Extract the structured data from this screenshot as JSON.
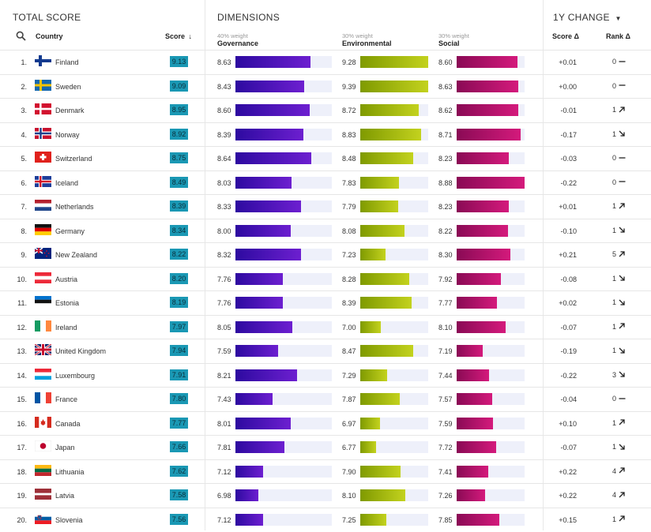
{
  "header": {
    "total_score": "TOTAL SCORE",
    "dimensions": "DIMENSIONS",
    "change": "1Y CHANGE",
    "col_country": "Country",
    "col_score": "Score",
    "col_score_delta": "Score Δ",
    "col_rank_delta": "Rank Δ"
  },
  "dimensions": [
    {
      "weight": "40% weight",
      "name": "Governance",
      "color_dark": "#2d0aa0",
      "color_light": "#6d1fd0"
    },
    {
      "weight": "30% weight",
      "name": "Environmental",
      "color_dark": "#7f9a00",
      "color_light": "#c3d21e"
    },
    {
      "weight": "30% weight",
      "name": "Social",
      "color_dark": "#8a0a55",
      "color_light": "#d41a7c"
    }
  ],
  "accent": "#1a98b4",
  "rows": [
    {
      "rank": "1.",
      "country": "Finland",
      "flag": "fi",
      "score": "9.13",
      "gov": "8.63",
      "env": "9.28",
      "soc": "8.60",
      "sd": "+0.01",
      "rd": "0",
      "dir": "flat"
    },
    {
      "rank": "2.",
      "country": "Sweden",
      "flag": "se",
      "score": "9.09",
      "gov": "8.43",
      "env": "9.39",
      "soc": "8.63",
      "sd": "+0.00",
      "rd": "0",
      "dir": "flat"
    },
    {
      "rank": "3.",
      "country": "Denmark",
      "flag": "dk",
      "score": "8.95",
      "gov": "8.60",
      "env": "8.72",
      "soc": "8.62",
      "sd": "-0.01",
      "rd": "1",
      "dir": "up"
    },
    {
      "rank": "4.",
      "country": "Norway",
      "flag": "no",
      "score": "8.92",
      "gov": "8.39",
      "env": "8.83",
      "soc": "8.71",
      "sd": "-0.17",
      "rd": "1",
      "dir": "down"
    },
    {
      "rank": "5.",
      "country": "Switzerland",
      "flag": "ch",
      "score": "8.75",
      "gov": "8.64",
      "env": "8.48",
      "soc": "8.23",
      "sd": "-0.03",
      "rd": "0",
      "dir": "flat"
    },
    {
      "rank": "6.",
      "country": "Iceland",
      "flag": "is",
      "score": "8.49",
      "gov": "8.03",
      "env": "7.83",
      "soc": "8.88",
      "sd": "-0.22",
      "rd": "0",
      "dir": "flat"
    },
    {
      "rank": "7.",
      "country": "Netherlands",
      "flag": "nl",
      "score": "8.39",
      "gov": "8.33",
      "env": "7.79",
      "soc": "8.23",
      "sd": "+0.01",
      "rd": "1",
      "dir": "up"
    },
    {
      "rank": "8.",
      "country": "Germany",
      "flag": "de",
      "score": "8.34",
      "gov": "8.00",
      "env": "8.08",
      "soc": "8.22",
      "sd": "-0.10",
      "rd": "1",
      "dir": "down"
    },
    {
      "rank": "9.",
      "country": "New Zealand",
      "flag": "nz",
      "score": "8.22",
      "gov": "8.32",
      "env": "7.23",
      "soc": "8.30",
      "sd": "+0.21",
      "rd": "5",
      "dir": "up"
    },
    {
      "rank": "10.",
      "country": "Austria",
      "flag": "at",
      "score": "8.20",
      "gov": "7.76",
      "env": "8.28",
      "soc": "7.92",
      "sd": "-0.08",
      "rd": "1",
      "dir": "down"
    },
    {
      "rank": "11.",
      "country": "Estonia",
      "flag": "ee",
      "score": "8.19",
      "gov": "7.76",
      "env": "8.39",
      "soc": "7.77",
      "sd": "+0.02",
      "rd": "1",
      "dir": "down"
    },
    {
      "rank": "12.",
      "country": "Ireland",
      "flag": "ie",
      "score": "7.97",
      "gov": "8.05",
      "env": "7.00",
      "soc": "8.10",
      "sd": "-0.07",
      "rd": "1",
      "dir": "up"
    },
    {
      "rank": "13.",
      "country": "United Kingdom",
      "flag": "gb",
      "score": "7.94",
      "gov": "7.59",
      "env": "8.47",
      "soc": "7.19",
      "sd": "-0.19",
      "rd": "1",
      "dir": "down"
    },
    {
      "rank": "14.",
      "country": "Luxembourg",
      "flag": "lu",
      "score": "7.91",
      "gov": "8.21",
      "env": "7.29",
      "soc": "7.44",
      "sd": "-0.22",
      "rd": "3",
      "dir": "down"
    },
    {
      "rank": "15.",
      "country": "France",
      "flag": "fr",
      "score": "7.80",
      "gov": "7.43",
      "env": "7.87",
      "soc": "7.57",
      "sd": "-0.04",
      "rd": "0",
      "dir": "flat"
    },
    {
      "rank": "16.",
      "country": "Canada",
      "flag": "ca",
      "score": "7.77",
      "gov": "8.01",
      "env": "6.97",
      "soc": "7.59",
      "sd": "+0.10",
      "rd": "1",
      "dir": "up"
    },
    {
      "rank": "17.",
      "country": "Japan",
      "flag": "jp",
      "score": "7.66",
      "gov": "7.81",
      "env": "6.77",
      "soc": "7.72",
      "sd": "-0.07",
      "rd": "1",
      "dir": "down"
    },
    {
      "rank": "18.",
      "country": "Lithuania",
      "flag": "lt",
      "score": "7.62",
      "gov": "7.12",
      "env": "7.90",
      "soc": "7.41",
      "sd": "+0.22",
      "rd": "4",
      "dir": "up"
    },
    {
      "rank": "19.",
      "country": "Latvia",
      "flag": "lv",
      "score": "7.58",
      "gov": "6.98",
      "env": "8.10",
      "soc": "7.26",
      "sd": "+0.22",
      "rd": "4",
      "dir": "up"
    },
    {
      "rank": "20.",
      "country": "Slovenia",
      "flag": "si",
      "score": "7.56",
      "gov": "7.12",
      "env": "7.25",
      "soc": "7.85",
      "sd": "+0.15",
      "rd": "1",
      "dir": "up"
    }
  ]
}
